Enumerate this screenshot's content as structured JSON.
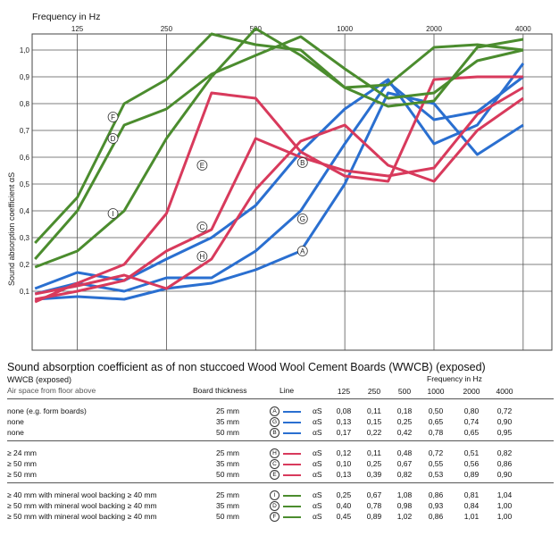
{
  "chart_data": {
    "type": "line",
    "title": "Frequency in Hz",
    "ylabel": "Sound absorption coefficient αS",
    "x_ticks": [
      "125",
      "250",
      "500",
      "1000",
      "2000",
      "4000"
    ],
    "y_ticks": [
      "1,0",
      "0,9",
      "0,8",
      "0,7",
      "0,6",
      "0,5",
      "0,4",
      "0,3",
      "0,2",
      "0,1"
    ],
    "ylim": [
      0,
      1.08
    ],
    "x_scale": "log",
    "grid": true,
    "series": [
      {
        "name": "A",
        "color": "#2a6fd0",
        "x": [
          90,
          125,
          180,
          250,
          355,
          500,
          710,
          1000,
          1400,
          2000,
          2800,
          4000
        ],
        "y": [
          0.07,
          0.08,
          0.07,
          0.11,
          0.13,
          0.18,
          0.25,
          0.5,
          0.84,
          0.8,
          0.61,
          0.72
        ]
      },
      {
        "name": "G",
        "color": "#2a6fd0",
        "x": [
          90,
          125,
          180,
          250,
          355,
          500,
          710,
          1000,
          1400,
          2000,
          2800,
          4000
        ],
        "y": [
          0.09,
          0.13,
          0.1,
          0.15,
          0.15,
          0.25,
          0.4,
          0.65,
          0.88,
          0.74,
          0.77,
          0.9
        ]
      },
      {
        "name": "B",
        "color": "#2a6fd0",
        "x": [
          90,
          125,
          180,
          250,
          355,
          500,
          710,
          1000,
          1400,
          2000,
          2800,
          4000
        ],
        "y": [
          0.11,
          0.17,
          0.14,
          0.22,
          0.3,
          0.42,
          0.62,
          0.78,
          0.89,
          0.65,
          0.72,
          0.95
        ]
      },
      {
        "name": "H",
        "color": "#d83a5c",
        "x": [
          90,
          125,
          180,
          250,
          355,
          500,
          710,
          1000,
          1400,
          2000,
          2800,
          4000
        ],
        "y": [
          0.09,
          0.12,
          0.16,
          0.11,
          0.22,
          0.48,
          0.66,
          0.72,
          0.57,
          0.51,
          0.7,
          0.82
        ]
      },
      {
        "name": "C",
        "color": "#d83a5c",
        "x": [
          90,
          125,
          180,
          250,
          355,
          500,
          710,
          1000,
          1400,
          2000,
          2800,
          4000
        ],
        "y": [
          0.07,
          0.1,
          0.14,
          0.25,
          0.33,
          0.67,
          0.6,
          0.55,
          0.53,
          0.56,
          0.76,
          0.86
        ]
      },
      {
        "name": "E",
        "color": "#d83a5c",
        "x": [
          90,
          125,
          180,
          250,
          355,
          500,
          710,
          1000,
          1400,
          2000,
          2800,
          4000
        ],
        "y": [
          0.06,
          0.13,
          0.2,
          0.39,
          0.84,
          0.82,
          0.62,
          0.53,
          0.51,
          0.89,
          0.9,
          0.9
        ]
      },
      {
        "name": "I",
        "color": "#4b8c2e",
        "x": [
          90,
          125,
          180,
          250,
          355,
          500,
          710,
          1000,
          1400,
          2000,
          2800,
          4000
        ],
        "y": [
          0.19,
          0.25,
          0.4,
          0.67,
          0.9,
          1.08,
          0.98,
          0.86,
          0.79,
          0.81,
          1.01,
          1.04
        ]
      },
      {
        "name": "D",
        "color": "#4b8c2e",
        "x": [
          90,
          125,
          180,
          250,
          355,
          500,
          710,
          1000,
          1400,
          2000,
          2800,
          4000
        ],
        "y": [
          0.22,
          0.4,
          0.72,
          0.78,
          0.91,
          0.98,
          1.05,
          0.93,
          0.82,
          0.84,
          0.96,
          1.0
        ]
      },
      {
        "name": "F",
        "color": "#4b8c2e",
        "x": [
          90,
          125,
          180,
          250,
          355,
          500,
          710,
          1000,
          1400,
          2000,
          2800,
          4000
        ],
        "y": [
          0.28,
          0.45,
          0.8,
          0.89,
          1.06,
          1.02,
          1.0,
          0.86,
          0.87,
          1.01,
          1.02,
          1.0
        ]
      }
    ],
    "markers": [
      {
        "letter": "F",
        "x": 165,
        "y": 0.75
      },
      {
        "letter": "D",
        "x": 165,
        "y": 0.67
      },
      {
        "letter": "I",
        "x": 165,
        "y": 0.39
      },
      {
        "letter": "E",
        "x": 330,
        "y": 0.57
      },
      {
        "letter": "C",
        "x": 330,
        "y": 0.34
      },
      {
        "letter": "H",
        "x": 330,
        "y": 0.23
      },
      {
        "letter": "B",
        "x": 720,
        "y": 0.58
      },
      {
        "letter": "G",
        "x": 720,
        "y": 0.37
      },
      {
        "letter": "A",
        "x": 720,
        "y": 0.25
      }
    ]
  },
  "table": {
    "title": "Sound absorption coefficient as of non stuccoed Wood Wool Cement Boards (WWCB) (exposed)",
    "wwcb": "WWCB (exposed)",
    "air": "Air space from floor above",
    "board_thickness": "Board thickness",
    "line": "Line",
    "freq_label": "Frequency in Hz",
    "freqs": [
      "125",
      "250",
      "500",
      "1000",
      "2000",
      "4000"
    ],
    "alpha": "αS",
    "groups": [
      {
        "rows": [
          {
            "desc": "none (e.g. form boards)",
            "thickness": "25 mm",
            "marker": "A",
            "color": "#2a6fd0",
            "values": [
              "0,08",
              "0,11",
              "0,18",
              "0,50",
              "0,80",
              "0,72"
            ]
          },
          {
            "desc": "none",
            "thickness": "35 mm",
            "marker": "G",
            "color": "#2a6fd0",
            "values": [
              "0,13",
              "0,15",
              "0,25",
              "0,65",
              "0,74",
              "0,90"
            ]
          },
          {
            "desc": "none",
            "thickness": "50 mm",
            "marker": "B",
            "color": "#2a6fd0",
            "values": [
              "0,17",
              "0,22",
              "0,42",
              "0,78",
              "0,65",
              "0,95"
            ]
          }
        ]
      },
      {
        "rows": [
          {
            "desc": "≥ 24 mm",
            "thickness": "25 mm",
            "marker": "H",
            "color": "#d83a5c",
            "values": [
              "0,12",
              "0,11",
              "0,48",
              "0,72",
              "0,51",
              "0,82"
            ]
          },
          {
            "desc": "≥ 50 mm",
            "thickness": "35 mm",
            "marker": "C",
            "color": "#d83a5c",
            "values": [
              "0,10",
              "0,25",
              "0,67",
              "0,55",
              "0,56",
              "0,86"
            ]
          },
          {
            "desc": "≥ 50 mm",
            "thickness": "50 mm",
            "marker": "E",
            "color": "#d83a5c",
            "values": [
              "0,13",
              "0,39",
              "0,82",
              "0,53",
              "0,89",
              "0,90"
            ]
          }
        ]
      },
      {
        "rows": [
          {
            "desc": "≥ 40 mm with mineral wool backing ≥ 40 mm",
            "thickness": "25 mm",
            "marker": "I",
            "color": "#4b8c2e",
            "values": [
              "0,25",
              "0,67",
              "1,08",
              "0,86",
              "0,81",
              "1,04"
            ]
          },
          {
            "desc": "≥ 50 mm with mineral wool backing ≥ 40 mm",
            "thickness": "35 mm",
            "marker": "D",
            "color": "#4b8c2e",
            "values": [
              "0,40",
              "0,78",
              "0,98",
              "0,93",
              "0,84",
              "1,00"
            ]
          },
          {
            "desc": "≥ 50 mm with mineral wool backing ≥ 40 mm",
            "thickness": "50 mm",
            "marker": "F",
            "color": "#4b8c2e",
            "values": [
              "0,45",
              "0,89",
              "1,02",
              "0,86",
              "1,01",
              "1,00"
            ]
          }
        ]
      }
    ]
  }
}
